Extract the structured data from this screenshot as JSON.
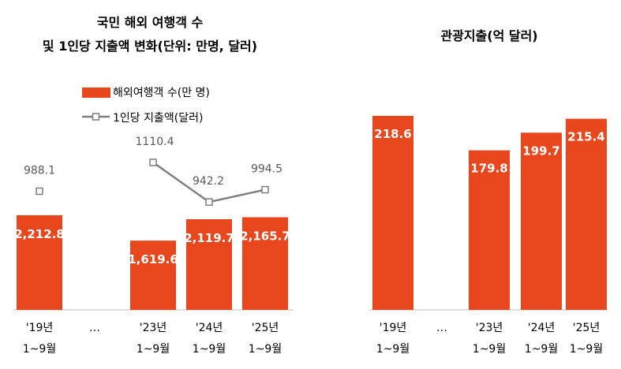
{
  "left_chart": {
    "title_line1": "국민 해외 여행객 수",
    "title_line2": "및 1인당 지출액 변화(단위: 만명, 달러)"
  },
  "right_chart": {
    "title": "관광지출(억 달러)"
  },
  "colors": {
    "bar": "#E8471E",
    "line": "#7F7F7F",
    "axis": "#BFBFBF"
  },
  "chart_data": [
    {
      "type": "bar+line",
      "title": "국민 해외 여행객 수 및 1인당 지출액 변화(단위: 만명, 달러)",
      "categories": [
        {
          "year": "'19년",
          "period": "1~9월"
        },
        {
          "year": "…",
          "period": ""
        },
        {
          "year": "'23년",
          "period": "1~9월"
        },
        {
          "year": "'24년",
          "period": "1~9월"
        },
        {
          "year": "'25년",
          "period": "1~9월"
        }
      ],
      "series": [
        {
          "name": "해외여행객 수(만 명)",
          "type": "bar",
          "values": [
            2212.8,
            null,
            1619.6,
            2119.7,
            2165.7
          ],
          "labels": [
            "2,212.8",
            null,
            "1,619.6",
            "2,119.7",
            "2,165.7"
          ]
        },
        {
          "name": "1인당 지출액(달러)",
          "type": "line",
          "values": [
            988.1,
            null,
            1110.4,
            942.2,
            994.5
          ],
          "labels": [
            "988.1",
            null,
            "1110.4",
            "942.2",
            "994.5"
          ]
        }
      ],
      "legend_position": "top",
      "bar_ylim": [
        0,
        4200
      ],
      "line_ylim": [
        400,
        1200
      ]
    },
    {
      "type": "bar",
      "title": "관광지출(억 달러)",
      "categories": [
        {
          "year": "'19년",
          "period": "1~9월"
        },
        {
          "year": "…",
          "period": ""
        },
        {
          "year": "'23년",
          "period": "1~9월"
        },
        {
          "year": "'24년",
          "period": "1~9월"
        },
        {
          "year": "'25년",
          "period": "1~9월"
        }
      ],
      "values": [
        218.6,
        null,
        179.8,
        199.7,
        215.4
      ],
      "labels": [
        "218.6",
        null,
        "179.8",
        "199.7",
        "215.4"
      ],
      "ylim": [
        0,
        258
      ]
    }
  ]
}
